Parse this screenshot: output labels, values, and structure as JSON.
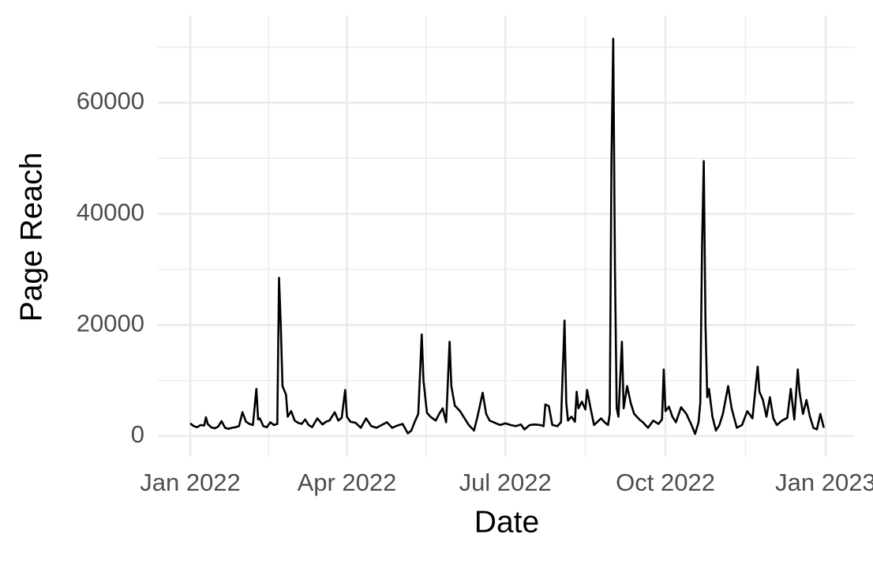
{
  "chart_data": {
    "type": "line",
    "x_label": "Date",
    "y_label": "Page Reach",
    "color": "#000000",
    "grid": true,
    "x": [
      0,
      2,
      4,
      6,
      8,
      9,
      10,
      12,
      14,
      16,
      18,
      20,
      22,
      24,
      26,
      28,
      30,
      32,
      34,
      36,
      38,
      39,
      40,
      42,
      44,
      46,
      48,
      50,
      51,
      52,
      53,
      55,
      56,
      58,
      60,
      62,
      64,
      66,
      68,
      70,
      73,
      76,
      78,
      80,
      83,
      85,
      87,
      89,
      90,
      92,
      95,
      98,
      101,
      104,
      107,
      110,
      113,
      116,
      119,
      122,
      125,
      127,
      129,
      131,
      133,
      134,
      136,
      138,
      141,
      143,
      145,
      147,
      149,
      150,
      152,
      155,
      158,
      160,
      163,
      165,
      168,
      170,
      172,
      175,
      178,
      181,
      184,
      187,
      190,
      192,
      195,
      198,
      201,
      203,
      204,
      206,
      208,
      211,
      213,
      215,
      216,
      217,
      219,
      221,
      222,
      223,
      225,
      227,
      228,
      230,
      232,
      234,
      236,
      238,
      240,
      241,
      242,
      243,
      244,
      245,
      246,
      248,
      249,
      251,
      253,
      255,
      258,
      260,
      263,
      266,
      269,
      271,
      272,
      273,
      275,
      277,
      279,
      282,
      285,
      288,
      290,
      292,
      293,
      294,
      295,
      296,
      297,
      298,
      300,
      302,
      304,
      306,
      309,
      311,
      314,
      317,
      320,
      323,
      326,
      327,
      329,
      331,
      333,
      335,
      337,
      340,
      343,
      345,
      347,
      349,
      350,
      352,
      354,
      356,
      358,
      360,
      362,
      364
    ],
    "values": [
      2300,
      1800,
      1600,
      2000,
      1900,
      3400,
      2200,
      1600,
      1400,
      1700,
      2700,
      1500,
      1300,
      1500,
      1600,
      1800,
      4300,
      2600,
      2200,
      2000,
      8500,
      3000,
      3200,
      1800,
      1600,
      2500,
      2000,
      2200,
      28500,
      20000,
      9000,
      7500,
      3500,
      4500,
      2800,
      2400,
      2200,
      3000,
      2000,
      1600,
      3200,
      2100,
      2600,
      2800,
      4300,
      2800,
      3300,
      8300,
      3500,
      2600,
      2400,
      1500,
      3200,
      1800,
      1500,
      2000,
      2500,
      1500,
      1900,
      2200,
      500,
      1000,
      2600,
      4000,
      18300,
      10000,
      4200,
      3500,
      2800,
      4000,
      5000,
      2500,
      17000,
      9000,
      5500,
      4500,
      3000,
      2000,
      1000,
      3500,
      7800,
      4000,
      2800,
      2400,
      2000,
      2300,
      2000,
      1800,
      2100,
      1200,
      2000,
      2100,
      2000,
      1800,
      5700,
      5400,
      2000,
      1800,
      2500,
      20800,
      6000,
      2800,
      3500,
      2600,
      8000,
      5000,
      6200,
      4800,
      8300,
      5000,
      2000,
      2600,
      3200,
      2500,
      2000,
      4000,
      50000,
      71500,
      30000,
      5000,
      3500,
      17000,
      5000,
      9000,
      6000,
      4000,
      3000,
      2500,
      1500,
      2800,
      2200,
      3000,
      12000,
      4500,
      5300,
      3500,
      2500,
      5200,
      4000,
      2000,
      400,
      2500,
      6000,
      34000,
      49500,
      20000,
      7000,
      8500,
      3500,
      1000,
      2000,
      4000,
      9000,
      5000,
      1500,
      2000,
      4500,
      3200,
      12500,
      8000,
      6500,
      3500,
      7000,
      3200,
      2000,
      2800,
      3300,
      8500,
      3000,
      12000,
      8000,
      4000,
      6500,
      3500,
      1500,
      1200,
      4000,
      1500
    ],
    "xlim": [
      -18.6,
      381.8
    ],
    "xticks": [
      {
        "value": 0,
        "label": "Jan 2022"
      },
      {
        "value": 90,
        "label": "Apr 2022"
      },
      {
        "value": 181,
        "label": "Jul 2022"
      },
      {
        "value": 273,
        "label": "Oct 2022"
      },
      {
        "value": 365,
        "label": "Jan 2023"
      }
    ],
    "ylim": [
      -3700,
      75640
    ],
    "yticks": [
      0,
      20000,
      40000,
      60000
    ]
  }
}
